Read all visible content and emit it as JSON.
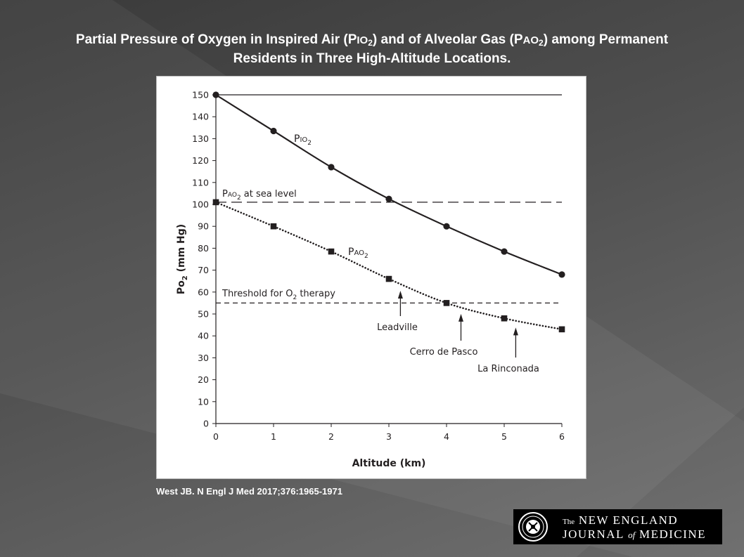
{
  "slide": {
    "title_part1": "Partial Pressure of Oxygen in Inspired Air (P",
    "title_pio_sc": "IO",
    "title_pio_sub": "2",
    "title_part2": ") and of Alveolar Gas (P",
    "title_pao_sc": "AO",
    "title_pao_sub": "2",
    "title_part3": ") among Permanent",
    "title_line2": "Residents in Three High-Altitude Locations.",
    "citation": "West JB. N Engl J Med 2017;376:1965-1971",
    "logo": {
      "the": "The",
      "line1": "NEW ENGLAND",
      "line2a": "JOURNAL",
      "of": "of",
      "line2b": "MEDICINE"
    }
  },
  "chart_data": {
    "type": "line",
    "xlabel": "Altitude (km)",
    "ylabel_main": "Po",
    "ylabel_sub": "2",
    "ylabel_unit": " (mm Hg)",
    "xlim": [
      0,
      6
    ],
    "ylim": [
      0,
      150
    ],
    "x_ticks": [
      0,
      1,
      2,
      3,
      4,
      5,
      6
    ],
    "y_ticks": [
      0,
      10,
      20,
      30,
      40,
      50,
      60,
      70,
      80,
      90,
      100,
      110,
      120,
      130,
      140,
      150
    ],
    "x": [
      0,
      1,
      2,
      3,
      4,
      5,
      6
    ],
    "series": [
      {
        "name": "PIO2",
        "label_main": "P",
        "label_sc": "IO",
        "label_sub": "2",
        "style": "solid",
        "marker": "circle",
        "color": "#231f20",
        "values": [
          150,
          133.5,
          117,
          102.5,
          90,
          78.5,
          68
        ]
      },
      {
        "name": "PAO2",
        "label_main": "P",
        "label_sc": "AO",
        "label_sub": "2",
        "style": "dotted",
        "marker": "square",
        "color": "#231f20",
        "values": [
          101,
          90,
          78.5,
          66,
          55,
          48,
          43
        ]
      }
    ],
    "reference_lines": [
      {
        "value": 150,
        "style": "solid",
        "label": ""
      },
      {
        "value": 101,
        "style": "long-dash",
        "label_main": "P",
        "label_sc": "AO",
        "label_sub": "2",
        "label_rest": " at sea level"
      },
      {
        "value": 55,
        "style": "short-dash",
        "label_main": "Threshold for O",
        "label_sub": "2",
        "label_rest": " therapy"
      }
    ],
    "annotations": [
      {
        "text": "Leadville",
        "arrow_x": 3.2
      },
      {
        "text": "Cerro de Pasco",
        "arrow_x": 4.25
      },
      {
        "text": "La Rinconada",
        "arrow_x": 5.2
      }
    ],
    "grid": false,
    "legend": "none (direct labels on curves)"
  }
}
